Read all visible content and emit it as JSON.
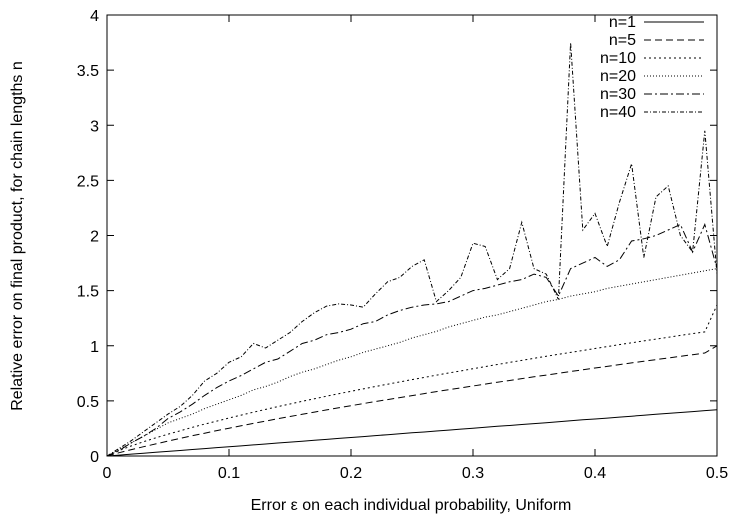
{
  "chart_data": {
    "type": "line",
    "title": "",
    "xlabel": "Error ε on each individual probability, Uniform",
    "ylabel": "Relative error on final product, for chain lengths n",
    "xlim": [
      0,
      0.5
    ],
    "ylim": [
      0,
      4
    ],
    "grid": false,
    "legend_position": "top-right",
    "x_ticks": [
      "0",
      "0.1",
      "0.2",
      "0.3",
      "0.4",
      "0.5"
    ],
    "y_ticks": [
      "0",
      "0.5",
      "1",
      "1.5",
      "2",
      "2.5",
      "3",
      "3.5",
      "4"
    ],
    "x": [
      0,
      0.01,
      0.02,
      0.03,
      0.04,
      0.05,
      0.06,
      0.07,
      0.08,
      0.09,
      0.1,
      0.11,
      0.12,
      0.13,
      0.14,
      0.15,
      0.16,
      0.17,
      0.18,
      0.19,
      0.2,
      0.21,
      0.22,
      0.23,
      0.24,
      0.25,
      0.26,
      0.27,
      0.28,
      0.29,
      0.3,
      0.31,
      0.32,
      0.33,
      0.34,
      0.35,
      0.36,
      0.37,
      0.38,
      0.39,
      0.4,
      0.41,
      0.42,
      0.43,
      0.44,
      0.45,
      0.46,
      0.47,
      0.48,
      0.49,
      0.5
    ],
    "series": [
      {
        "name": "n=1",
        "dash": "",
        "values": [
          0,
          0.008,
          0.017,
          0.025,
          0.034,
          0.042,
          0.05,
          0.059,
          0.067,
          0.076,
          0.084,
          0.092,
          0.101,
          0.109,
          0.118,
          0.126,
          0.134,
          0.143,
          0.151,
          0.16,
          0.168,
          0.176,
          0.185,
          0.193,
          0.202,
          0.21,
          0.218,
          0.227,
          0.235,
          0.244,
          0.252,
          0.26,
          0.269,
          0.277,
          0.286,
          0.294,
          0.302,
          0.311,
          0.319,
          0.328,
          0.336,
          0.344,
          0.353,
          0.361,
          0.37,
          0.378,
          0.386,
          0.395,
          0.403,
          0.412,
          0.42
        ]
      },
      {
        "name": "n=5",
        "dash": "7,4",
        "values": [
          0,
          0.03,
          0.058,
          0.084,
          0.11,
          0.135,
          0.16,
          0.184,
          0.207,
          0.23,
          0.252,
          0.274,
          0.296,
          0.317,
          0.338,
          0.358,
          0.378,
          0.398,
          0.418,
          0.437,
          0.456,
          0.475,
          0.494,
          0.512,
          0.53,
          0.548,
          0.566,
          0.584,
          0.601,
          0.618,
          0.635,
          0.652,
          0.669,
          0.685,
          0.702,
          0.718,
          0.734,
          0.75,
          0.766,
          0.782,
          0.798,
          0.813,
          0.829,
          0.844,
          0.859,
          0.874,
          0.889,
          0.904,
          0.919,
          0.934,
          1.0
        ]
      },
      {
        "name": "n=10",
        "dash": "2,3",
        "values": [
          0,
          0.05,
          0.092,
          0.13,
          0.165,
          0.198,
          0.229,
          0.26,
          0.289,
          0.317,
          0.345,
          0.371,
          0.397,
          0.423,
          0.448,
          0.472,
          0.496,
          0.519,
          0.542,
          0.565,
          0.587,
          0.609,
          0.63,
          0.651,
          0.672,
          0.693,
          0.713,
          0.733,
          0.753,
          0.772,
          0.792,
          0.811,
          0.83,
          0.849,
          0.867,
          0.886,
          0.904,
          0.922,
          0.94,
          0.957,
          0.975,
          0.992,
          1.01,
          1.027,
          1.044,
          1.06,
          1.077,
          1.094,
          1.11,
          1.126,
          1.37
        ]
      },
      {
        "name": "n=20",
        "dash": "1,2",
        "values": [
          0,
          0.06,
          0.12,
          0.18,
          0.24,
          0.3,
          0.34,
          0.38,
          0.43,
          0.47,
          0.51,
          0.55,
          0.6,
          0.63,
          0.67,
          0.72,
          0.76,
          0.79,
          0.83,
          0.87,
          0.9,
          0.94,
          0.97,
          1.0,
          1.03,
          1.07,
          1.1,
          1.13,
          1.17,
          1.2,
          1.23,
          1.26,
          1.28,
          1.31,
          1.34,
          1.37,
          1.4,
          1.42,
          1.45,
          1.47,
          1.49,
          1.52,
          1.54,
          1.56,
          1.58,
          1.6,
          1.62,
          1.64,
          1.66,
          1.68,
          1.7
        ]
      },
      {
        "name": "n=30",
        "dash": "8,3,2,3",
        "values": [
          0,
          0.05,
          0.12,
          0.18,
          0.25,
          0.34,
          0.4,
          0.47,
          0.55,
          0.62,
          0.68,
          0.73,
          0.79,
          0.85,
          0.88,
          0.95,
          1.02,
          1.05,
          1.1,
          1.12,
          1.15,
          1.2,
          1.22,
          1.28,
          1.32,
          1.35,
          1.37,
          1.38,
          1.4,
          1.45,
          1.5,
          1.52,
          1.55,
          1.58,
          1.6,
          1.65,
          1.62,
          1.45,
          1.7,
          1.75,
          1.8,
          1.72,
          1.78,
          1.95,
          1.97,
          2.0,
          2.05,
          2.1,
          1.85,
          2.1,
          1.7
        ]
      },
      {
        "name": "n=40",
        "dash": "4,2,1,2",
        "values": [
          0,
          0.07,
          0.14,
          0.22,
          0.3,
          0.38,
          0.45,
          0.55,
          0.68,
          0.75,
          0.85,
          0.9,
          1.02,
          0.98,
          1.05,
          1.12,
          1.22,
          1.3,
          1.36,
          1.38,
          1.37,
          1.35,
          1.47,
          1.58,
          1.62,
          1.72,
          1.78,
          1.4,
          1.5,
          1.62,
          1.93,
          1.9,
          1.6,
          1.7,
          2.12,
          1.7,
          1.65,
          1.42,
          3.75,
          2.05,
          2.2,
          1.9,
          2.3,
          2.65,
          1.8,
          2.35,
          2.45,
          2.0,
          1.85,
          2.95,
          1.65
        ]
      }
    ]
  }
}
